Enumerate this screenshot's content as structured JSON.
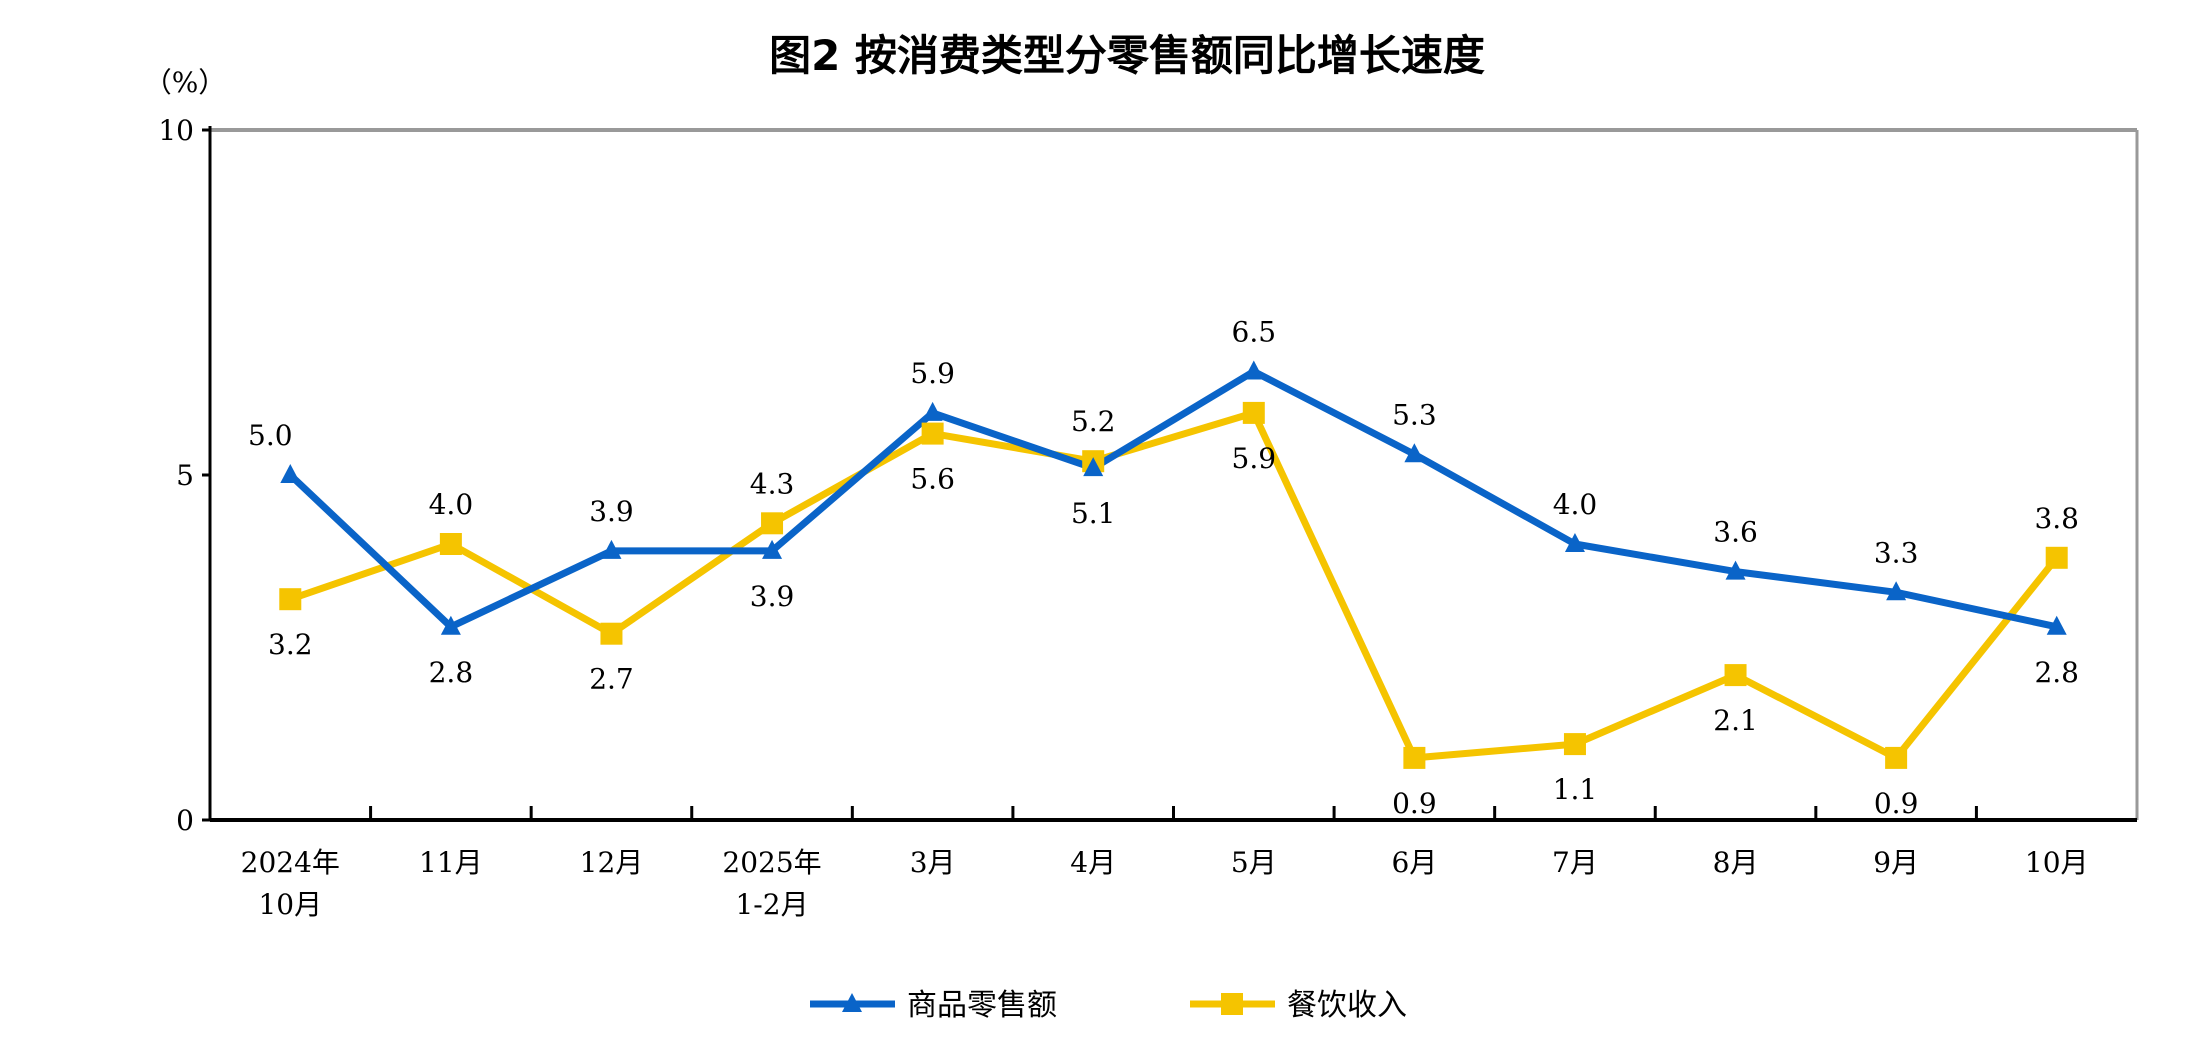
{
  "chart_data": {
    "type": "line",
    "title": "图2  按消费类型分零售额同比增长速度",
    "ylabel": "（%）",
    "ylim": [
      0,
      10
    ],
    "yticks": [
      "0",
      "5",
      "10"
    ],
    "categories": [
      [
        "2024年",
        "10月"
      ],
      [
        "11月"
      ],
      [
        "12月"
      ],
      [
        "2025年",
        "1-2月"
      ],
      [
        "3月"
      ],
      [
        "4月"
      ],
      [
        "5月"
      ],
      [
        "6月"
      ],
      [
        "7月"
      ],
      [
        "8月"
      ],
      [
        "9月"
      ],
      [
        "10月"
      ]
    ],
    "grid": false,
    "legend": "bottom",
    "series": [
      {
        "name": "商品零售额",
        "color": "#0a64c8",
        "marker": "triangle",
        "values": [
          5.0,
          2.8,
          3.9,
          3.9,
          5.9,
          5.1,
          6.5,
          5.3,
          4.0,
          3.6,
          3.3,
          2.8
        ],
        "labels": [
          "5.0",
          "2.8",
          "3.9",
          "3.9",
          "5.9",
          "5.1",
          "6.5",
          "5.3",
          "4.0",
          "3.6",
          "3.3",
          "2.8"
        ]
      },
      {
        "name": "餐饮收入",
        "color": "#f5c400",
        "marker": "square",
        "values": [
          3.2,
          4.0,
          2.7,
          4.3,
          5.6,
          5.2,
          5.9,
          0.9,
          1.1,
          2.1,
          0.9,
          3.8
        ],
        "labels": [
          "3.2",
          "4.0",
          "2.7",
          "4.3",
          "5.6",
          "5.2",
          "5.9",
          "0.9",
          "1.1",
          "2.1",
          "0.9",
          "3.8"
        ]
      }
    ]
  }
}
